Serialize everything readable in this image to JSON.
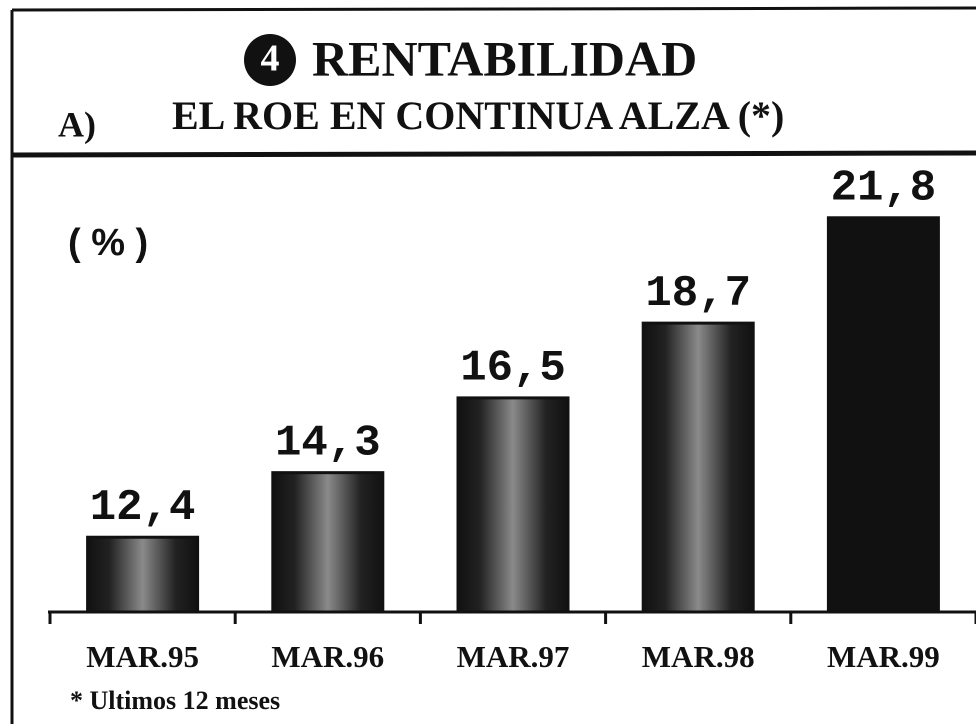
{
  "chart_data": {
    "type": "bar",
    "number": "4",
    "title": "RENTABILIDAD",
    "section": "A)",
    "subtitle": "EL ROE EN CONTINUA ALZA (*)",
    "unit_label": "( % )",
    "categories": [
      "MAR.95",
      "MAR.96",
      "MAR.97",
      "MAR.98",
      "MAR.99"
    ],
    "values": [
      12.4,
      14.3,
      16.5,
      18.7,
      21.8
    ],
    "value_labels": [
      "12,4",
      "14,3",
      "16,5",
      "18,7",
      "21,8"
    ],
    "color": "#111111",
    "ylim": [
      10.2,
      23.5
    ],
    "footnote": "* Ultimos 12 meses"
  }
}
